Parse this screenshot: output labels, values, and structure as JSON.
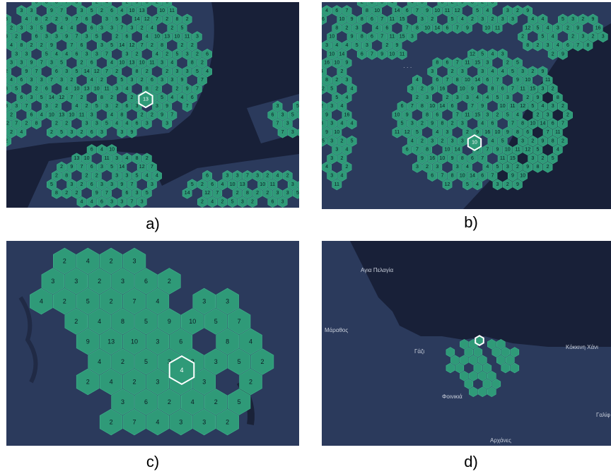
{
  "colors": {
    "sea": "#182038",
    "land": "#2b3a5c",
    "hex_fill": "#2f9a78",
    "hex_stroke": "#3fb58c",
    "hex_text": "#0b1a22",
    "highlight": "#ffffff"
  },
  "panels": [
    {
      "id": "a",
      "caption": "a)",
      "highlight_label": "13",
      "hex_labels": [
        "6",
        "3",
        "3",
        "7",
        "3",
        "2",
        "4",
        "2",
        "5",
        "3",
        "2",
        "6",
        "3",
        "3",
        "9",
        "7",
        "3",
        "5",
        "2",
        "6",
        "4",
        "10",
        "13",
        "10",
        "11",
        "3",
        "4",
        "8",
        "2",
        "2",
        "9",
        "7",
        "6",
        "3",
        "5",
        "14",
        "12",
        "7",
        "2",
        "8",
        "2",
        "2",
        "3",
        "3",
        "5",
        "4",
        "4"
      ]
    },
    {
      "id": "b",
      "caption": "b)",
      "highlight_label": "10",
      "hex_labels": [
        "2",
        "3",
        "3",
        "4",
        "4",
        "5",
        "3",
        "2",
        "9",
        "8",
        "2",
        "3",
        "4",
        "6",
        "7",
        "8",
        "10",
        "14",
        "6",
        "7",
        "9",
        "10",
        "11",
        "12",
        "5",
        "4",
        "3",
        "2",
        "9",
        "16",
        "10",
        "9",
        "8",
        "6",
        "7",
        "11",
        "15",
        "3",
        "2",
        "5",
        "4",
        "2",
        "3"
      ]
    },
    {
      "id": "c",
      "caption": "c)",
      "highlight_label": "4",
      "hex_labels": [
        "2",
        "4",
        "2",
        "3",
        "3",
        "3",
        "2",
        "3",
        "6",
        "2",
        "4",
        "2",
        "5",
        "2",
        "7",
        "4",
        "3",
        "3",
        "2",
        "4",
        "8",
        "5",
        "9",
        "10",
        "5",
        "7",
        "9",
        "13",
        "10",
        "3",
        "6",
        "8",
        "4",
        "4",
        "2",
        "5",
        "3",
        "2",
        "3",
        "5",
        "2"
      ]
    },
    {
      "id": "d",
      "caption": "d)",
      "place_labels": [
        "Αγια Πελαγία",
        "Μάραθος",
        "Γάζι",
        "Φοινικιά",
        "Κόκκινη Χάνι",
        "Γαλίφ",
        "Αρχάνες"
      ]
    }
  ]
}
